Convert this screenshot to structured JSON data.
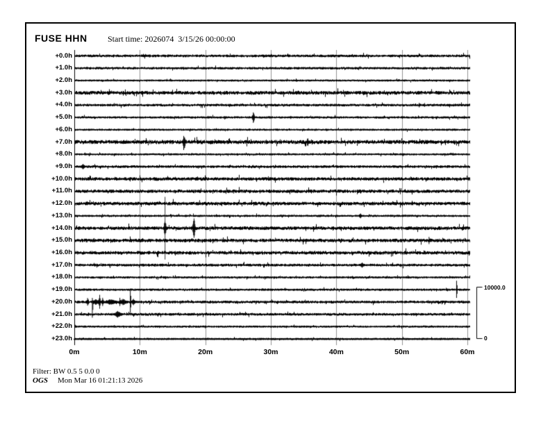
{
  "header": {
    "station": "FUSE HHN",
    "start_time_label": "Start time: 2026074  3/15/26 00:00:00"
  },
  "footer": {
    "filter": "Filter: BW 0.5 5 0.0 0",
    "org": "OGS",
    "timestamp": "Mon Mar 16 01:21:13 2026"
  },
  "scale_bar": {
    "max_label": "10000.0",
    "min_label": "0",
    "counts": 10000
  },
  "colors": {
    "trace": "#000000",
    "grid": "#909090",
    "background": "#ffffff",
    "border": "#000000"
  },
  "chart_data": {
    "type": "line",
    "subtype": "helicorder-daily",
    "title": "FUSE HHN",
    "xlabel_ticks": [
      "0m",
      "10m",
      "20m",
      "30m",
      "40m",
      "50m",
      "60m"
    ],
    "minutes_per_row": 60,
    "amplitude_scale_counts": 10000,
    "rows": [
      {
        "label": "+0.0h",
        "noise_counts": 170,
        "events": []
      },
      {
        "label": "+1.0h",
        "noise_counts": 150,
        "events": []
      },
      {
        "label": "+2.0h",
        "noise_counts": 100,
        "events": []
      },
      {
        "label": "+3.0h",
        "noise_counts": 270,
        "events": []
      },
      {
        "label": "+4.0h",
        "noise_counts": 170,
        "events": [
          {
            "minute": 52.6,
            "up": 450,
            "down": 450,
            "kind": "spike"
          }
        ]
      },
      {
        "label": "+5.0h",
        "noise_counts": 130,
        "events": [
          {
            "minute": 27.3,
            "up": 1150,
            "down": 1250,
            "kind": "burst",
            "dur": 0.5
          },
          {
            "minute": 33.0,
            "up": 300,
            "down": 300,
            "kind": "spike"
          }
        ]
      },
      {
        "label": "+6.0h",
        "noise_counts": 110,
        "events": []
      },
      {
        "label": "+7.0h",
        "noise_counts": 310,
        "events": [
          {
            "minute": 16.7,
            "up": 1450,
            "down": 1950,
            "kind": "burst",
            "dur": 0.55
          },
          {
            "minute": 35.6,
            "up": 800,
            "down": 850,
            "kind": "burst",
            "dur": 0.45
          }
        ]
      },
      {
        "label": "+8.0h",
        "noise_counts": 110,
        "events": []
      },
      {
        "label": "+9.0h",
        "noise_counts": 170,
        "events": [
          {
            "minute": 1.3,
            "up": 430,
            "down": 430,
            "kind": "burst",
            "dur": 0.7
          }
        ]
      },
      {
        "label": "+10.0h",
        "noise_counts": 250,
        "events": []
      },
      {
        "label": "+11.0h",
        "noise_counts": 240,
        "events": []
      },
      {
        "label": "+12.0h",
        "noise_counts": 250,
        "events": []
      },
      {
        "label": "+13.0h",
        "noise_counts": 120,
        "events": [
          {
            "minute": 43.6,
            "up": 430,
            "down": 430,
            "kind": "burst",
            "dur": 0.5
          }
        ]
      },
      {
        "label": "+14.0h",
        "noise_counts": 260,
        "events": [
          {
            "minute": 13.8,
            "up": 6100,
            "down": 6100,
            "kind": "line"
          },
          {
            "minute": 13.8,
            "up": 2050,
            "down": 2050,
            "kind": "burst",
            "dur": 0.5
          },
          {
            "minute": 18.2,
            "up": 2900,
            "down": 2850,
            "kind": "burst",
            "dur": 0.55
          }
        ]
      },
      {
        "label": "+15.0h",
        "noise_counts": 260,
        "events": [
          {
            "minute": 54.1,
            "up": 700,
            "down": 700,
            "kind": "spike"
          }
        ]
      },
      {
        "label": "+16.0h",
        "noise_counts": 260,
        "events": []
      },
      {
        "label": "+17.0h",
        "noise_counts": 180,
        "events": [
          {
            "minute": 43.9,
            "up": 400,
            "down": 400,
            "kind": "burst",
            "dur": 0.9
          }
        ]
      },
      {
        "label": "+18.0h",
        "noise_counts": 120,
        "events": []
      },
      {
        "label": "+19.0h",
        "noise_counts": 130,
        "events": [
          {
            "minute": 58.3,
            "up": 1750,
            "down": 1600,
            "kind": "spike"
          }
        ]
      },
      {
        "label": "+20.0h",
        "noise_counts": 180,
        "events": [
          {
            "minute": 2.0,
            "up": 1250,
            "down": 1100,
            "kind": "burst",
            "dur": 0.35
          },
          {
            "minute": 2.7,
            "up": 800,
            "down": 3050,
            "kind": "spike"
          },
          {
            "minute": 3.3,
            "up": 500,
            "down": 500,
            "kind": "burst",
            "dur": 1.2
          },
          {
            "minute": 3.8,
            "up": 1500,
            "down": 1400,
            "kind": "burst",
            "dur": 0.4
          },
          {
            "minute": 4.3,
            "up": 950,
            "down": 900,
            "kind": "burst",
            "dur": 0.35
          },
          {
            "minute": 5.6,
            "up": 520,
            "down": 520,
            "kind": "burst",
            "dur": 2.2
          },
          {
            "minute": 6.9,
            "up": 820,
            "down": 780,
            "kind": "spike"
          },
          {
            "minute": 7.4,
            "up": 520,
            "down": 520,
            "kind": "burst",
            "dur": 1.4
          },
          {
            "minute": 8.5,
            "up": 2400,
            "down": 2100,
            "kind": "spike"
          },
          {
            "minute": 9.0,
            "up": 600,
            "down": 600,
            "kind": "burst",
            "dur": 0.8
          }
        ]
      },
      {
        "label": "+21.0h",
        "noise_counts": 170,
        "events": [
          {
            "minute": 2.1,
            "up": 350,
            "down": 350,
            "kind": "spike"
          },
          {
            "minute": 6.6,
            "up": 560,
            "down": 560,
            "kind": "burst",
            "dur": 1.4
          }
        ]
      },
      {
        "label": "+22.0h",
        "noise_counts": 110,
        "events": []
      },
      {
        "label": "+23.0h",
        "noise_counts": 110,
        "events": []
      }
    ]
  }
}
